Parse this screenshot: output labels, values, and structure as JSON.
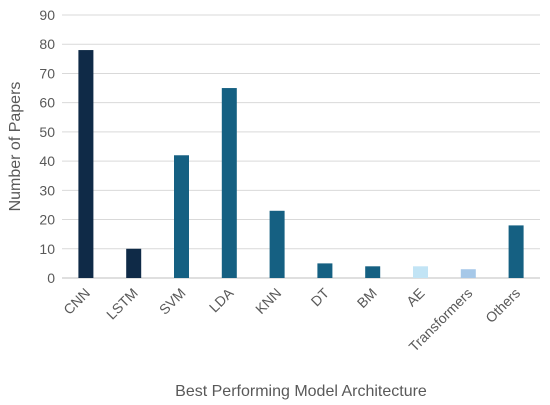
{
  "chart_data": {
    "type": "bar",
    "title": "",
    "xlabel": "Best Performing Model Architecture",
    "ylabel": "Number of Papers",
    "ylim": [
      0,
      90
    ],
    "yticks": [
      0,
      10,
      20,
      30,
      40,
      50,
      60,
      70,
      80,
      90
    ],
    "grid": true,
    "legend": "none",
    "categories": [
      "CNN",
      "LSTM",
      "SVM",
      "LDA",
      "KNN",
      "DT",
      "BM",
      "AE",
      "Transformers",
      "Others"
    ],
    "values": [
      78,
      10,
      42,
      65,
      23,
      5,
      4,
      4,
      3,
      18
    ],
    "colors": [
      "#0f2a47",
      "#0f2a47",
      "#156082",
      "#156082",
      "#156082",
      "#156082",
      "#156082",
      "#c2e4f5",
      "#a6c8e8",
      "#156082"
    ]
  }
}
